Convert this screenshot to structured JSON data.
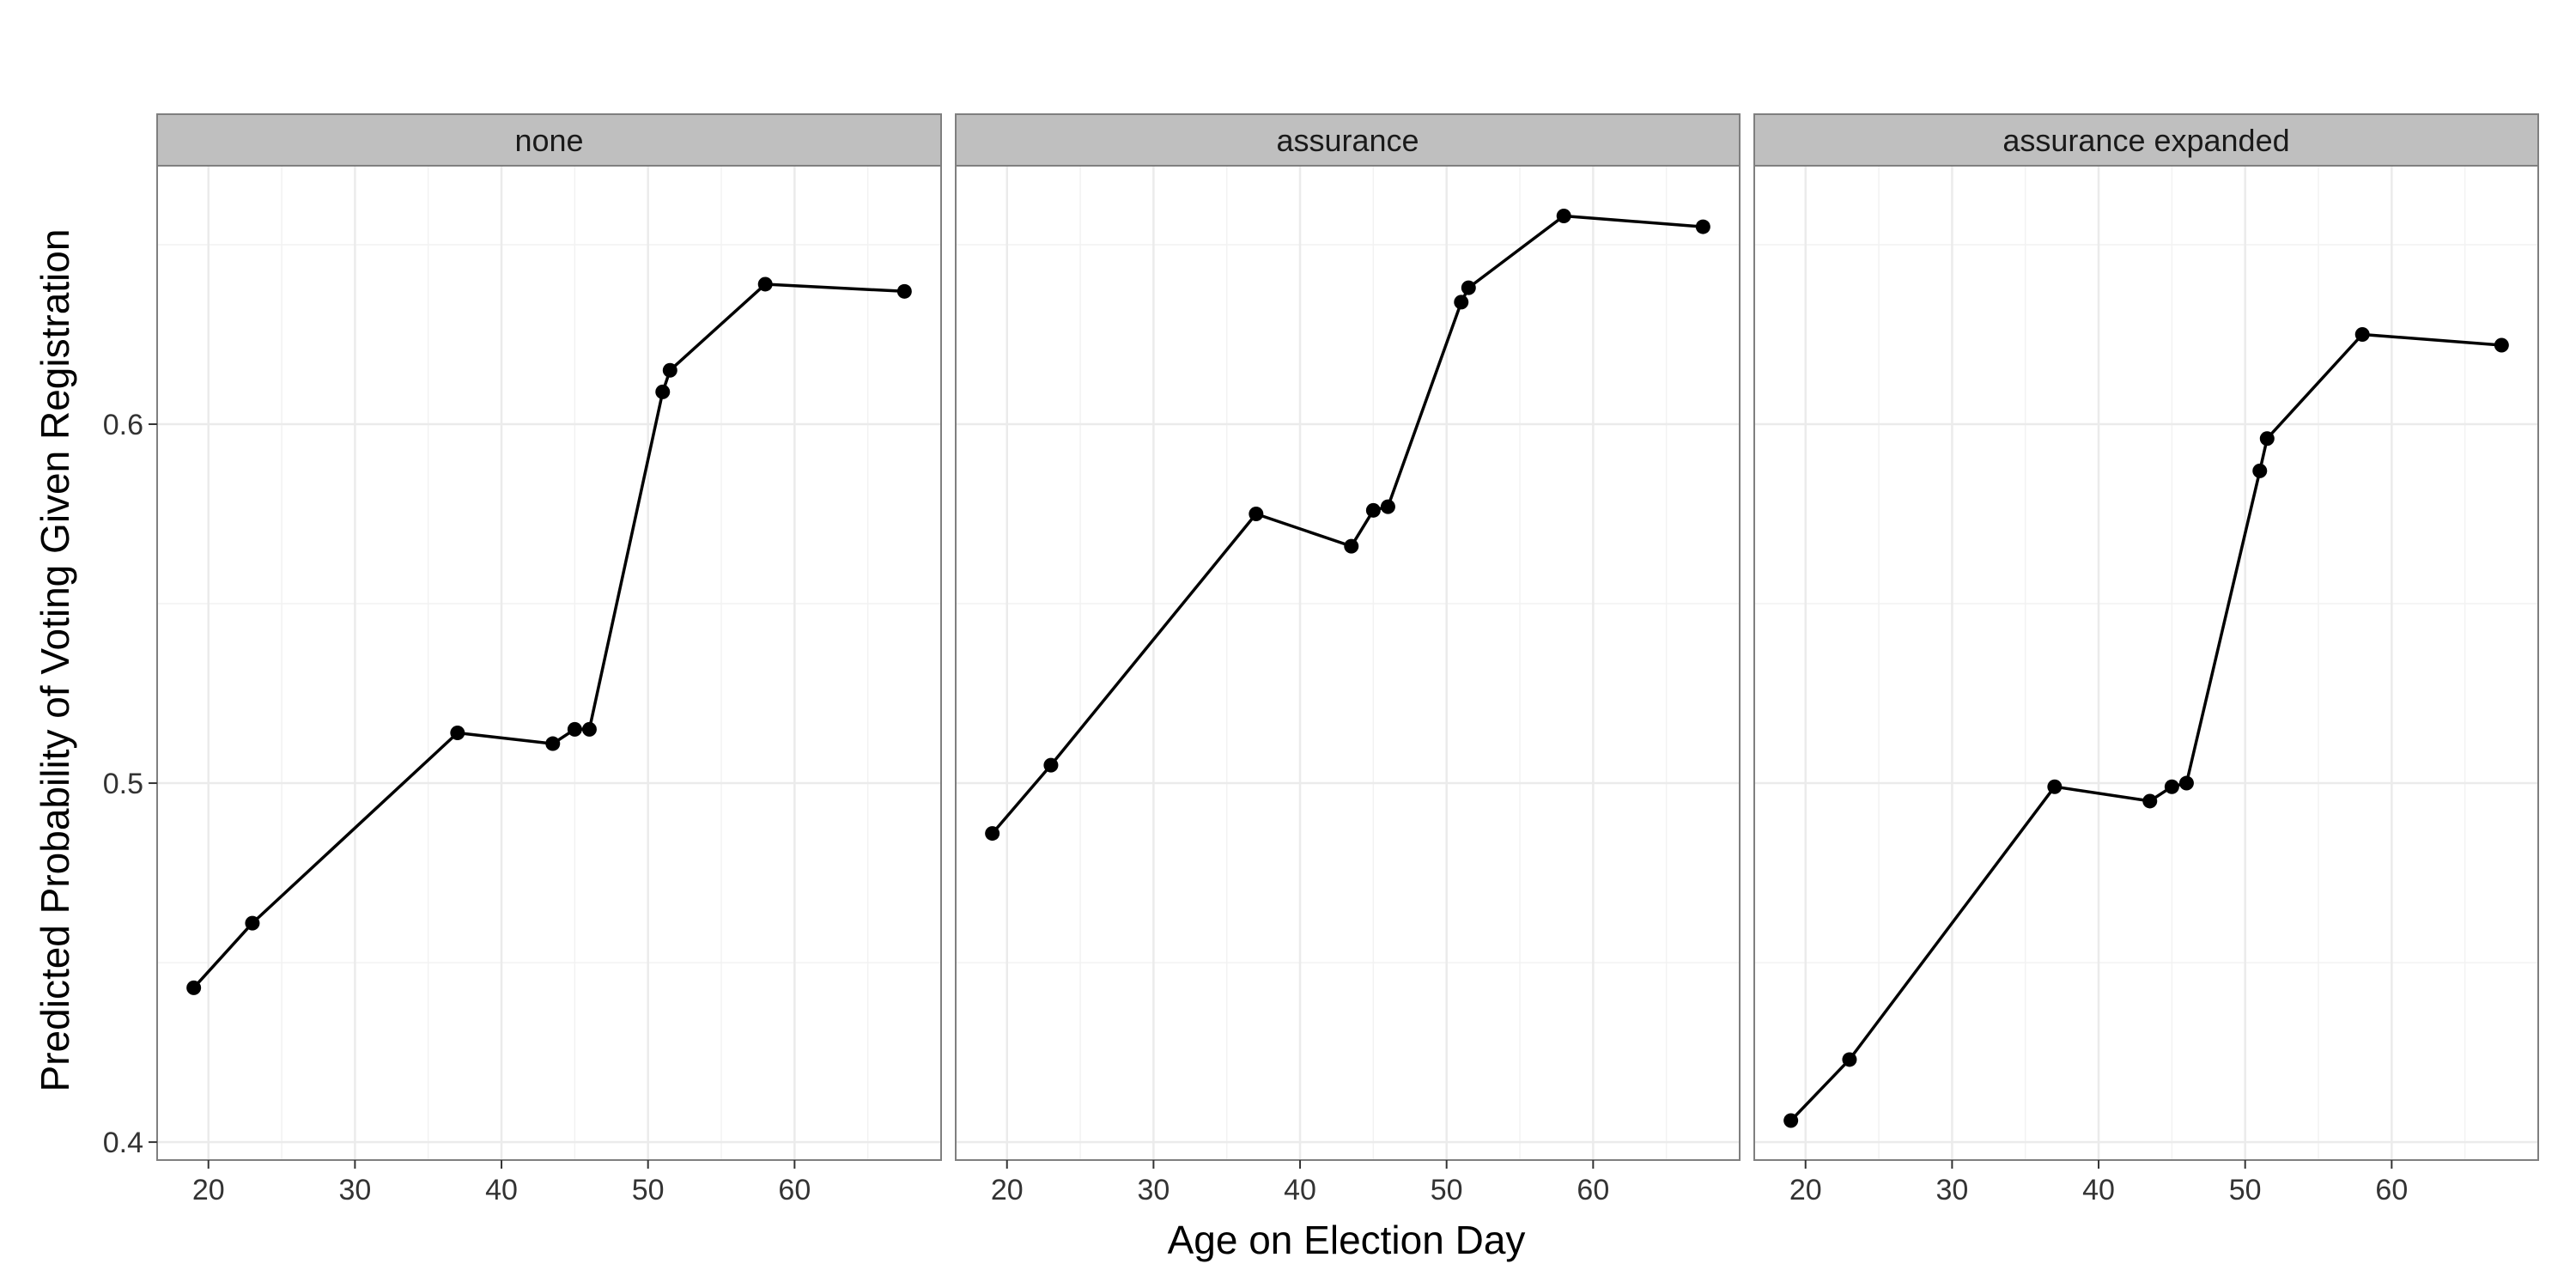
{
  "chart_data": {
    "type": "line",
    "xlabel": "Age on Election Day",
    "ylabel": "Predicted Probability of Voting Given Registration",
    "xlim": [
      16.5,
      70
    ],
    "ylim": [
      0.395,
      0.672
    ],
    "x_ticks": [
      20,
      30,
      40,
      50,
      60
    ],
    "x_tick_labels": [
      "20",
      "30",
      "40",
      "50",
      "60"
    ],
    "y_ticks": [
      0.4,
      0.5,
      0.6
    ],
    "y_tick_labels": [
      "0.4",
      "0.5",
      "0.6"
    ],
    "grid": true,
    "x": [
      19,
      23,
      37,
      43.5,
      45,
      46,
      51,
      51.5,
      58,
      67.5
    ],
    "panels": [
      {
        "name": "none",
        "values": [
          0.443,
          0.461,
          0.514,
          0.511,
          0.515,
          0.515,
          0.609,
          0.615,
          0.639,
          0.637
        ]
      },
      {
        "name": "assurance",
        "values": [
          0.486,
          0.505,
          0.575,
          0.566,
          0.576,
          0.577,
          0.634,
          0.638,
          0.658,
          0.655
        ]
      },
      {
        "name": "assurance expanded",
        "values": [
          0.406,
          0.423,
          0.499,
          0.495,
          0.499,
          0.5,
          0.587,
          0.596,
          0.625,
          0.622
        ]
      }
    ],
    "colors": {
      "strip": "#bfbfbf",
      "line": "#000000",
      "grid": "#ebebeb",
      "border": "#7f7f7f"
    }
  }
}
